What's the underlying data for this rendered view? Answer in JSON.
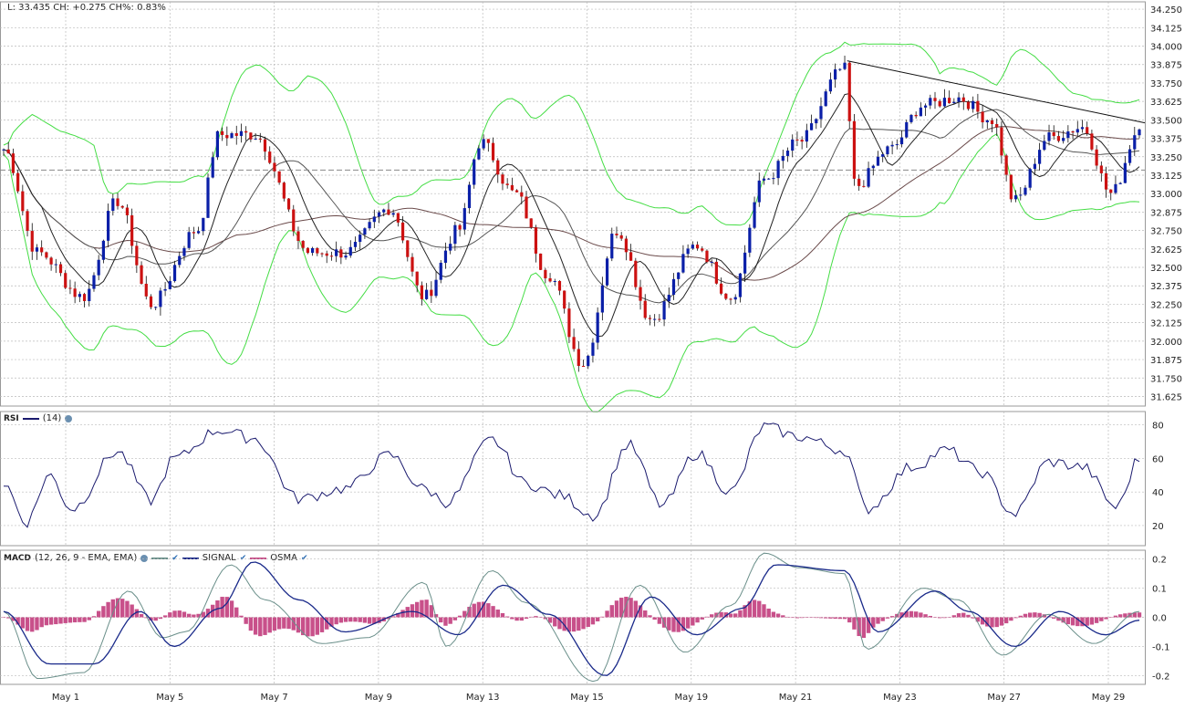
{
  "header": {
    "quote": "L: 33.435 CH: +0.275 CH%: 0.83%"
  },
  "colors": {
    "up": "#0a1fa8",
    "down": "#cc1111",
    "bollinger": "#44dd44",
    "ma_fast": "#222222",
    "ma_mid": "#555555",
    "ma_slow": "#6a4a4a",
    "rsi": "#1a1a6e",
    "macd": "#6a8f8a",
    "signal": "#1a2a8a",
    "osma": "#c8508a",
    "grid": "#bbbbbb"
  },
  "x_axis": {
    "labels": [
      "May 1",
      "May 5",
      "May 7",
      "May 9",
      "May 13",
      "May 15",
      "May 19",
      "May 21",
      "May 23",
      "May 27",
      "May 29"
    ]
  },
  "chart_data": [
    {
      "type": "candlestick",
      "name": "price",
      "ylim": [
        31.56,
        34.3
      ],
      "y_ticks": [
        "34.250",
        "34.125",
        "34.000",
        "33.875",
        "33.750",
        "33.625",
        "33.500",
        "33.375",
        "33.250",
        "33.125",
        "33.000",
        "32.875",
        "32.750",
        "32.625",
        "32.500",
        "32.375",
        "32.250",
        "32.125",
        "32.000",
        "31.875",
        "31.750",
        "31.625"
      ],
      "last_close": 33.435,
      "reference_line": 33.16,
      "anchors": [
        {
          "x": 0.0,
          "y": 33.3
        },
        {
          "x": 0.03,
          "y": 32.6
        },
        {
          "x": 0.07,
          "y": 32.3
        },
        {
          "x": 0.1,
          "y": 32.95
        },
        {
          "x": 0.13,
          "y": 32.25
        },
        {
          "x": 0.17,
          "y": 32.75
        },
        {
          "x": 0.19,
          "y": 33.4
        },
        {
          "x": 0.22,
          "y": 33.4
        },
        {
          "x": 0.27,
          "y": 32.6
        },
        {
          "x": 0.3,
          "y": 32.6
        },
        {
          "x": 0.34,
          "y": 32.9
        },
        {
          "x": 0.37,
          "y": 32.3
        },
        {
          "x": 0.4,
          "y": 32.75
        },
        {
          "x": 0.42,
          "y": 33.35
        },
        {
          "x": 0.45,
          "y": 33.0
        },
        {
          "x": 0.48,
          "y": 32.45
        },
        {
          "x": 0.51,
          "y": 31.85
        },
        {
          "x": 0.54,
          "y": 32.75
        },
        {
          "x": 0.57,
          "y": 32.15
        },
        {
          "x": 0.61,
          "y": 32.65
        },
        {
          "x": 0.64,
          "y": 32.3
        },
        {
          "x": 0.67,
          "y": 33.1
        },
        {
          "x": 0.7,
          "y": 33.35
        },
        {
          "x": 0.74,
          "y": 33.85
        },
        {
          "x": 0.75,
          "y": 33.05
        },
        {
          "x": 0.78,
          "y": 33.3
        },
        {
          "x": 0.81,
          "y": 33.6
        },
        {
          "x": 0.84,
          "y": 33.65
        },
        {
          "x": 0.87,
          "y": 33.5
        },
        {
          "x": 0.89,
          "y": 32.95
        },
        {
          "x": 0.92,
          "y": 33.38
        },
        {
          "x": 0.95,
          "y": 33.45
        },
        {
          "x": 0.975,
          "y": 33.0
        },
        {
          "x": 1.0,
          "y": 33.435
        }
      ],
      "trendline": [
        {
          "x": 0.74,
          "y": 33.9
        },
        {
          "x": 1.0,
          "y": 33.48
        }
      ]
    },
    {
      "type": "line",
      "name": "RSI",
      "legend": "(14)",
      "ylim": [
        8,
        88
      ],
      "y_ticks": [
        80,
        60,
        40,
        20
      ],
      "anchors": [
        {
          "x": 0.0,
          "y": 45
        },
        {
          "x": 0.02,
          "y": 22
        },
        {
          "x": 0.04,
          "y": 50
        },
        {
          "x": 0.06,
          "y": 30
        },
        {
          "x": 0.1,
          "y": 64
        },
        {
          "x": 0.13,
          "y": 35
        },
        {
          "x": 0.15,
          "y": 60
        },
        {
          "x": 0.19,
          "y": 77
        },
        {
          "x": 0.22,
          "y": 72
        },
        {
          "x": 0.26,
          "y": 36
        },
        {
          "x": 0.3,
          "y": 42
        },
        {
          "x": 0.34,
          "y": 62
        },
        {
          "x": 0.37,
          "y": 42
        },
        {
          "x": 0.39,
          "y": 34
        },
        {
          "x": 0.43,
          "y": 71
        },
        {
          "x": 0.46,
          "y": 45
        },
        {
          "x": 0.49,
          "y": 38
        },
        {
          "x": 0.52,
          "y": 26
        },
        {
          "x": 0.55,
          "y": 68
        },
        {
          "x": 0.58,
          "y": 32
        },
        {
          "x": 0.61,
          "y": 63
        },
        {
          "x": 0.64,
          "y": 40
        },
        {
          "x": 0.67,
          "y": 79
        },
        {
          "x": 0.7,
          "y": 73
        },
        {
          "x": 0.74,
          "y": 65
        },
        {
          "x": 0.76,
          "y": 30
        },
        {
          "x": 0.8,
          "y": 55
        },
        {
          "x": 0.83,
          "y": 65
        },
        {
          "x": 0.86,
          "y": 52
        },
        {
          "x": 0.89,
          "y": 27
        },
        {
          "x": 0.92,
          "y": 58
        },
        {
          "x": 0.95,
          "y": 55
        },
        {
          "x": 0.98,
          "y": 31
        },
        {
          "x": 1.0,
          "y": 60
        }
      ]
    },
    {
      "type": "line+bar",
      "name": "MACD",
      "legend": "(12, 26, 9 - EMA, EMA)",
      "series_labels": [
        "SIGNAL",
        "OSMA"
      ],
      "ylim": [
        -0.23,
        0.23
      ],
      "y_ticks": [
        0.2,
        0.1,
        0.0,
        -0.1,
        -0.2
      ],
      "macd_anchors": [
        {
          "x": 0.0,
          "y": 0.02
        },
        {
          "x": 0.03,
          "y": -0.21
        },
        {
          "x": 0.07,
          "y": -0.19
        },
        {
          "x": 0.11,
          "y": 0.09
        },
        {
          "x": 0.14,
          "y": -0.07
        },
        {
          "x": 0.16,
          "y": -0.05
        },
        {
          "x": 0.2,
          "y": 0.18
        },
        {
          "x": 0.23,
          "y": 0.06
        },
        {
          "x": 0.28,
          "y": -0.09
        },
        {
          "x": 0.32,
          "y": -0.07
        },
        {
          "x": 0.37,
          "y": 0.12
        },
        {
          "x": 0.39,
          "y": -0.1
        },
        {
          "x": 0.43,
          "y": 0.16
        },
        {
          "x": 0.46,
          "y": 0.05
        },
        {
          "x": 0.52,
          "y": -0.22
        },
        {
          "x": 0.56,
          "y": 0.11
        },
        {
          "x": 0.6,
          "y": -0.12
        },
        {
          "x": 0.64,
          "y": 0.04
        },
        {
          "x": 0.67,
          "y": 0.22
        },
        {
          "x": 0.7,
          "y": 0.17
        },
        {
          "x": 0.74,
          "y": 0.15
        },
        {
          "x": 0.76,
          "y": -0.11
        },
        {
          "x": 0.81,
          "y": 0.1
        },
        {
          "x": 0.84,
          "y": 0.06
        },
        {
          "x": 0.88,
          "y": -0.13
        },
        {
          "x": 0.92,
          "y": 0.01
        },
        {
          "x": 0.96,
          "y": -0.09
        },
        {
          "x": 1.0,
          "y": 0.02
        }
      ],
      "signal_anchors": [
        {
          "x": 0.0,
          "y": 0.02
        },
        {
          "x": 0.04,
          "y": -0.16
        },
        {
          "x": 0.08,
          "y": -0.16
        },
        {
          "x": 0.12,
          "y": 0.02
        },
        {
          "x": 0.15,
          "y": -0.1
        },
        {
          "x": 0.19,
          "y": 0.03
        },
        {
          "x": 0.22,
          "y": 0.19
        },
        {
          "x": 0.26,
          "y": 0.06
        },
        {
          "x": 0.3,
          "y": -0.05
        },
        {
          "x": 0.36,
          "y": 0.02
        },
        {
          "x": 0.4,
          "y": -0.06
        },
        {
          "x": 0.44,
          "y": 0.11
        },
        {
          "x": 0.48,
          "y": 0.01
        },
        {
          "x": 0.53,
          "y": -0.2
        },
        {
          "x": 0.57,
          "y": 0.07
        },
        {
          "x": 0.61,
          "y": -0.06
        },
        {
          "x": 0.65,
          "y": 0.03
        },
        {
          "x": 0.68,
          "y": 0.18
        },
        {
          "x": 0.74,
          "y": 0.16
        },
        {
          "x": 0.77,
          "y": -0.05
        },
        {
          "x": 0.82,
          "y": 0.09
        },
        {
          "x": 0.85,
          "y": 0.02
        },
        {
          "x": 0.89,
          "y": -0.1
        },
        {
          "x": 0.93,
          "y": 0.02
        },
        {
          "x": 0.97,
          "y": -0.06
        },
        {
          "x": 1.0,
          "y": -0.01
        }
      ]
    }
  ]
}
